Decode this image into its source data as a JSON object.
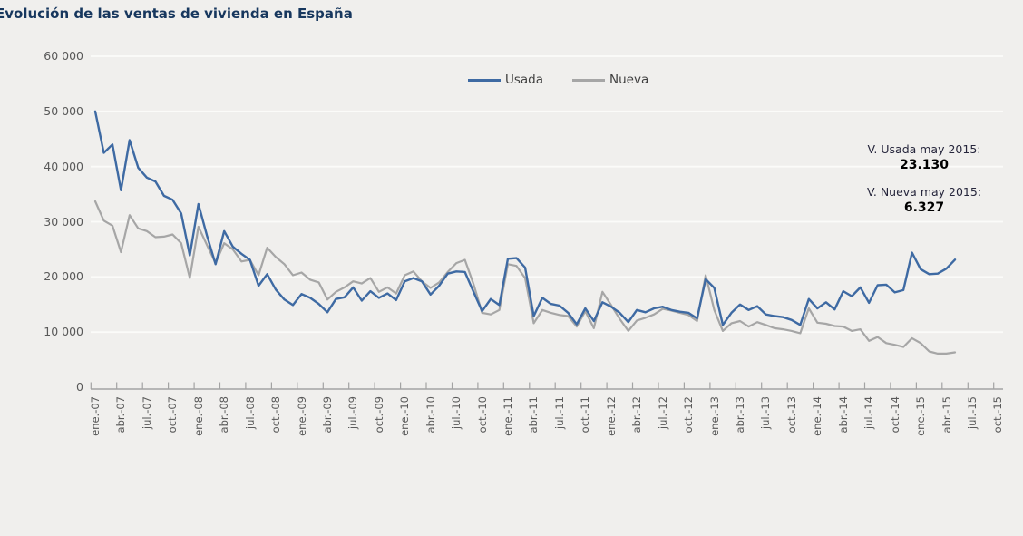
{
  "title": "Evolución de las ventas de vivienda en España",
  "legend": [
    {
      "label": "Usada",
      "color": "#3e6aa3"
    },
    {
      "label": "Nueva",
      "color": "#a6a6a6"
    }
  ],
  "annotations": [
    {
      "label": "V. Usada may 2015:",
      "value": "23.130"
    },
    {
      "label": "V. Nueva may 2015:",
      "value": "6.327"
    }
  ],
  "colors": {
    "background": "#f0efed",
    "gridline": "#fbfbf9",
    "axis": "#a3a3a3",
    "tick_label": "#595959",
    "title": "#17375e"
  },
  "chart_data": {
    "type": "line",
    "title": "Evolución de las ventas de vivienda en España",
    "xlabel": "",
    "ylabel": "",
    "ylim": [
      0,
      60000
    ],
    "grid": "horizontal-only",
    "legend_position": "top-center",
    "x_unit": "monthly, ene-2007 to may-2015",
    "y_tick_labels": [
      "60 000",
      "50 000",
      "40 000",
      "30 000",
      "20 000",
      "10 000",
      "0"
    ],
    "y_tick_values": [
      60000,
      50000,
      40000,
      30000,
      20000,
      10000,
      0
    ],
    "x_tick_labels": [
      "ene.-07",
      "abr.-07",
      "jul.-07",
      "oct.-07",
      "ene.-08",
      "abr.-08",
      "jul.-08",
      "oct.-08",
      "ene.-09",
      "abr.-09",
      "jul.-09",
      "oct.-09",
      "ene.-10",
      "abr.-10",
      "jul.-10",
      "oct.-10",
      "ene.-11",
      "abr.-11",
      "jul.-11",
      "oct.-11",
      "ene.-12",
      "abr.-12",
      "jul.-12",
      "oct.-12",
      "ene.-13",
      "abr.-13",
      "jul.-13",
      "oct.-13",
      "ene.-14",
      "abr.-14",
      "jul.-14",
      "oct.-14",
      "ene.-15",
      "abr.-15",
      "jul.-15",
      "oct.-15"
    ],
    "x_ticks_per_label_months": 3,
    "series": [
      {
        "name": "Usada",
        "color": "#3e6aa3",
        "values": [
          50000,
          42500,
          44000,
          35700,
          44800,
          39800,
          38000,
          37300,
          34700,
          34000,
          31500,
          23900,
          33200,
          27500,
          22300,
          28300,
          25500,
          24200,
          23100,
          18400,
          20500,
          17700,
          15900,
          14900,
          16900,
          16200,
          15100,
          13600,
          16000,
          16300,
          18100,
          15700,
          17400,
          16200,
          17000,
          15800,
          19200,
          19800,
          19200,
          16800,
          18400,
          20600,
          21000,
          20900,
          17300,
          13800,
          16000,
          14900,
          23300,
          23400,
          21700,
          12900,
          16200,
          15100,
          14800,
          13500,
          11400,
          14300,
          12000,
          15400,
          14600,
          13500,
          11800,
          14000,
          13600,
          14300,
          14600,
          14000,
          13700,
          13500,
          12500,
          19600,
          18000,
          11300,
          13500,
          15000,
          14000,
          14700,
          13200,
          12900,
          12700,
          12200,
          11300,
          16000,
          14300,
          15400,
          14100,
          17400,
          16500,
          18100,
          15300,
          18500,
          18600,
          17200,
          17600,
          24400,
          21400,
          20500,
          20600,
          21500,
          23130
        ]
      },
      {
        "name": "Nueva",
        "color": "#a6a6a6",
        "values": [
          33700,
          30200,
          29300,
          24500,
          31200,
          28800,
          28300,
          27200,
          27300,
          27700,
          26100,
          19800,
          29100,
          25800,
          22500,
          26100,
          25000,
          22800,
          23100,
          20300,
          25300,
          23600,
          22300,
          20300,
          20800,
          19500,
          19000,
          15900,
          17300,
          18100,
          19200,
          18800,
          19800,
          17300,
          18100,
          17000,
          20300,
          21000,
          19200,
          18000,
          19000,
          20900,
          22500,
          23100,
          18700,
          13500,
          13200,
          14000,
          22300,
          22000,
          19800,
          11600,
          14000,
          13500,
          13100,
          12900,
          11000,
          13800,
          10700,
          17300,
          14900,
          12400,
          10200,
          12100,
          12600,
          13200,
          14200,
          13900,
          13500,
          13100,
          12000,
          20300,
          14000,
          10200,
          11600,
          12000,
          11000,
          11800,
          11300,
          10700,
          10500,
          10200,
          9800,
          14300,
          11700,
          11500,
          11100,
          11000,
          10200,
          10500,
          8400,
          9100,
          8000,
          7700,
          7300,
          8900,
          8000,
          6500,
          6100,
          6100,
          6327
        ]
      }
    ],
    "last_point_callouts": [
      {
        "series": "Usada",
        "month": "may 2015",
        "value": 23130
      },
      {
        "series": "Nueva",
        "month": "may 2015",
        "value": 6327
      }
    ]
  }
}
